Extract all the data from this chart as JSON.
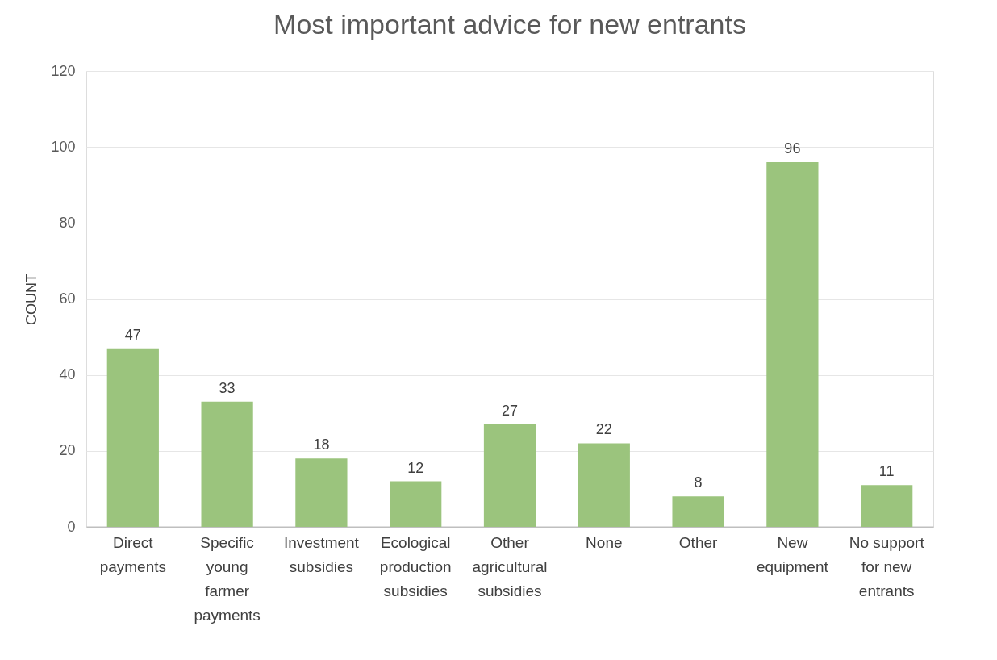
{
  "chart_data": {
    "type": "bar",
    "title": "Most important advice for new entrants",
    "ylabel": "COUNT",
    "categories": [
      "Direct payments",
      "Specific young farmer payments",
      "Investment subsidies",
      "Ecological production subsidies",
      "Other agricultural subsidies",
      "None",
      "Other",
      "New equipment",
      "No support for new entrants"
    ],
    "values": [
      47,
      33,
      18,
      12,
      27,
      22,
      8,
      96,
      11
    ],
    "color": "#9bc47d",
    "ylim": [
      0,
      120
    ],
    "yticks": [
      0,
      20,
      40,
      60,
      80,
      100,
      120
    ],
    "grid": "y",
    "data_labels": true
  }
}
